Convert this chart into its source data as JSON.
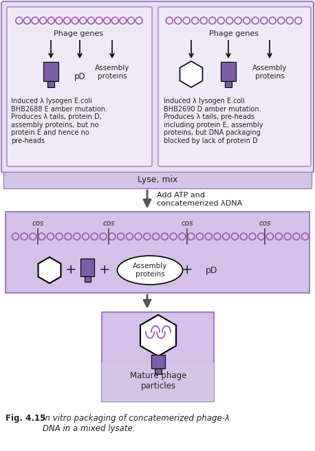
{
  "bg_color": "#ffffff",
  "panel_bg": "#e8dff0",
  "box_bg": "#f0eaf7",
  "dark_purple": "#7b5ea7",
  "medium_purple": "#9b7fc7",
  "light_purple": "#d4c5e8",
  "dna_color": "#9b59b6",
  "arrow_color": "#555555",
  "text_color": "#222222",
  "fig_title": "Fig. 4.15",
  "caption_italic": "In vitro packaging of concatemerized phage-λ\nDNA in a mixed lysate.",
  "left_label": "Phage genes",
  "right_label": "Phage genes",
  "left_desc": "Induced λ lysogen E.coli\nBHB2688 E amber mutation.\nProduces λ tails, protein D,\nassembly proteins, but no\nprotein E and hence no\npre-heads",
  "right_desc": "Induced λ lysogen E.coli\nBHB2690 D amber mutation.\nProduces λ tails, pre-heads\nincluding protein E, assembly\nproteins, but DNA packaging\nblocked by lack of protein D",
  "lyse_mix": "Lyse, mix",
  "add_atp_line1": "Add ATP and",
  "add_atp_line2": "concatemerized λDNA",
  "cos_labels": [
    "cos",
    "cos",
    "cos",
    "cos"
  ],
  "assembly_text": "Assembly\nproteins",
  "mature_text": "Mature phage\nparticles"
}
